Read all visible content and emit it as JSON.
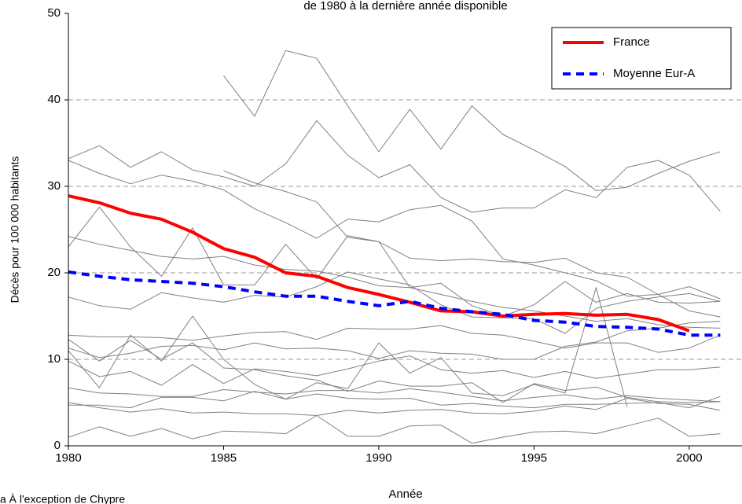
{
  "chart_data": {
    "type": "line",
    "title": "de 1980 à la dernière année disponible",
    "x_label": "Année",
    "y_label": "Décès pour 100 000 habitants",
    "footnote": "a À l'exception de Chypre",
    "x": [
      1980,
      1981,
      1982,
      1983,
      1984,
      1985,
      1986,
      1987,
      1988,
      1989,
      1990,
      1991,
      1992,
      1993,
      1994,
      1995,
      1996,
      1997,
      1998,
      1999,
      2000,
      2001
    ],
    "xlim": [
      1980,
      2001.7
    ],
    "xticks": [
      1980,
      1985,
      1990,
      1995,
      2000
    ],
    "ylim": [
      0,
      50
    ],
    "yticks": [
      0,
      10,
      20,
      30,
      40,
      50
    ],
    "grid": true,
    "legend": "upper right",
    "background_series": [
      {
        "color": "#808080",
        "values": [
          null,
          null,
          null,
          null,
          null,
          42.8,
          38.1,
          45.7,
          44.8,
          39.3,
          34.0,
          38.9,
          34.3,
          39.3,
          36.0,
          34.2,
          32.3,
          29.5,
          29.9,
          31.5,
          32.9,
          34.0
        ]
      },
      {
        "color": "#808080",
        "values": [
          33.2,
          34.7,
          32.2,
          34.0,
          31.9,
          31.1,
          30.0,
          32.6,
          37.6,
          33.6,
          31.0,
          32.5,
          28.7,
          27.0,
          27.5,
          27.5,
          29.6,
          28.7,
          32.2,
          33.0,
          31.3,
          27.1
        ]
      },
      {
        "color": "#808080",
        "values": [
          33.0,
          31.5,
          30.3,
          31.3,
          30.6,
          29.6,
          27.4,
          25.8,
          24.0,
          26.2,
          25.9,
          27.3,
          27.8,
          26.0,
          21.6,
          20.9,
          20.0,
          19.1,
          17.3,
          17.5,
          18.4,
          17.0
        ]
      },
      {
        "color": "#808080",
        "values": [
          23.0,
          27.6,
          23.0,
          19.6,
          25.2,
          18.6,
          18.6,
          23.3,
          19.3,
          24.3,
          23.6,
          18.3,
          18.8,
          16.2,
          15.0,
          16.3,
          19.0,
          16.6,
          17.6,
          16.6,
          16.5,
          16.7
        ]
      },
      {
        "color": "#808080",
        "values": [
          24.2,
          23.3,
          22.6,
          21.9,
          21.6,
          21.9,
          20.9,
          20.4,
          20.2,
          19.5,
          18.5,
          18.3,
          17.5,
          16.7,
          16.0,
          15.6,
          15.0,
          14.4,
          14.7,
          14.0,
          13.7,
          13.6
        ]
      },
      {
        "color": "#808080",
        "values": [
          null,
          null,
          null,
          null,
          null,
          31.8,
          30.4,
          29.4,
          28.2,
          24.1,
          23.6,
          21.7,
          21.4,
          21.6,
          21.3,
          21.2,
          21.7,
          20.0,
          19.5,
          17.5,
          15.6,
          14.9
        ]
      },
      {
        "color": "#808080",
        "values": [
          17.2,
          16.2,
          15.8,
          17.7,
          17.1,
          16.6,
          17.4,
          17.2,
          18.4,
          20.1,
          19.3,
          18.6,
          16.3,
          14.9,
          14.8,
          14.7,
          13.0,
          15.9,
          16.7,
          17.2,
          17.6,
          16.7
        ]
      },
      {
        "color": "#808080",
        "values": [
          12.8,
          12.6,
          12.6,
          12.5,
          12.2,
          12.7,
          13.1,
          13.2,
          12.3,
          13.6,
          13.5,
          13.5,
          13.9,
          13.0,
          12.8,
          12.1,
          11.3,
          11.9,
          11.9,
          10.8,
          11.3,
          12.8
        ]
      },
      {
        "color": "#808080",
        "values": [
          11.0,
          6.7,
          12.8,
          9.8,
          15.0,
          10.0,
          7.1,
          5.4,
          7.3,
          6.6,
          11.9,
          8.4,
          10.2,
          6.1,
          5.8,
          7.1,
          6.1,
          18.3,
          4.5,
          null,
          null,
          null
        ]
      },
      {
        "color": "#808080",
        "values": [
          11.3,
          10.2,
          10.7,
          11.5,
          11.6,
          11.1,
          11.9,
          11.2,
          11.3,
          11.0,
          10.1,
          11.0,
          10.7,
          10.6,
          10.0,
          10.0,
          11.5,
          12.0,
          13.3,
          13.6,
          14.2,
          14.4
        ]
      },
      {
        "color": "#808080",
        "values": [
          9.8,
          8.0,
          8.6,
          7.0,
          9.4,
          7.2,
          8.9,
          8.6,
          8.1,
          8.9,
          9.8,
          10.4,
          8.8,
          8.4,
          8.7,
          7.9,
          8.6,
          7.8,
          8.3,
          8.8,
          8.8,
          9.1
        ]
      },
      {
        "color": "#808080",
        "values": [
          6.7,
          6.1,
          6.0,
          5.7,
          5.7,
          6.5,
          6.2,
          6.0,
          6.4,
          6.4,
          6.1,
          6.6,
          6.2,
          5.7,
          5.2,
          5.6,
          5.9,
          5.4,
          5.8,
          5.5,
          5.3,
          5.1
        ]
      },
      {
        "color": "#808080",
        "values": [
          4.7,
          4.7,
          4.4,
          5.6,
          5.6,
          5.2,
          6.3,
          5.4,
          6.0,
          5.5,
          5.4,
          5.5,
          4.7,
          4.9,
          4.6,
          4.4,
          4.8,
          4.8,
          4.9,
          5.0,
          4.4,
          5.7
        ]
      },
      {
        "color": "#808080",
        "values": [
          5.0,
          4.4,
          3.9,
          4.3,
          3.8,
          3.9,
          3.7,
          3.7,
          3.5,
          4.1,
          3.8,
          4.1,
          4.2,
          3.8,
          3.7,
          4.0,
          4.6,
          4.2,
          5.5,
          4.9,
          4.8,
          4.1
        ]
      },
      {
        "color": "#808080",
        "values": [
          1.0,
          2.2,
          1.1,
          2.0,
          0.8,
          1.7,
          1.6,
          1.4,
          3.5,
          1.1,
          1.1,
          2.3,
          2.4,
          0.3,
          1.0,
          1.6,
          1.7,
          1.4,
          2.3,
          3.2,
          1.1,
          1.4
        ]
      },
      {
        "color": "#808080",
        "values": [
          12.3,
          9.8,
          12.2,
          10.0,
          11.9,
          9.0,
          8.8,
          8.1,
          7.6,
          6.3,
          7.5,
          6.9,
          6.9,
          7.3,
          5.0,
          7.2,
          6.4,
          6.8,
          5.6,
          5.1,
          5.0,
          5.1
        ]
      }
    ],
    "series": [
      {
        "name": "France",
        "color": "#ff0000",
        "dashed": false,
        "values": [
          28.9,
          28.1,
          26.9,
          26.2,
          24.7,
          22.8,
          21.8,
          20.0,
          19.6,
          18.3,
          17.5,
          16.6,
          15.6,
          15.5,
          15.0,
          15.2,
          15.3,
          15.1,
          15.2,
          14.6,
          13.3,
          null
        ]
      },
      {
        "name": "Moyenne Eur-A",
        "color": "#0000ff",
        "dashed": true,
        "values": [
          20.1,
          19.6,
          19.2,
          19.0,
          18.8,
          18.4,
          17.8,
          17.3,
          17.3,
          16.7,
          16.2,
          16.7,
          15.9,
          15.5,
          15.2,
          14.5,
          14.3,
          13.8,
          13.7,
          13.5,
          12.8,
          12.8
        ]
      }
    ]
  }
}
